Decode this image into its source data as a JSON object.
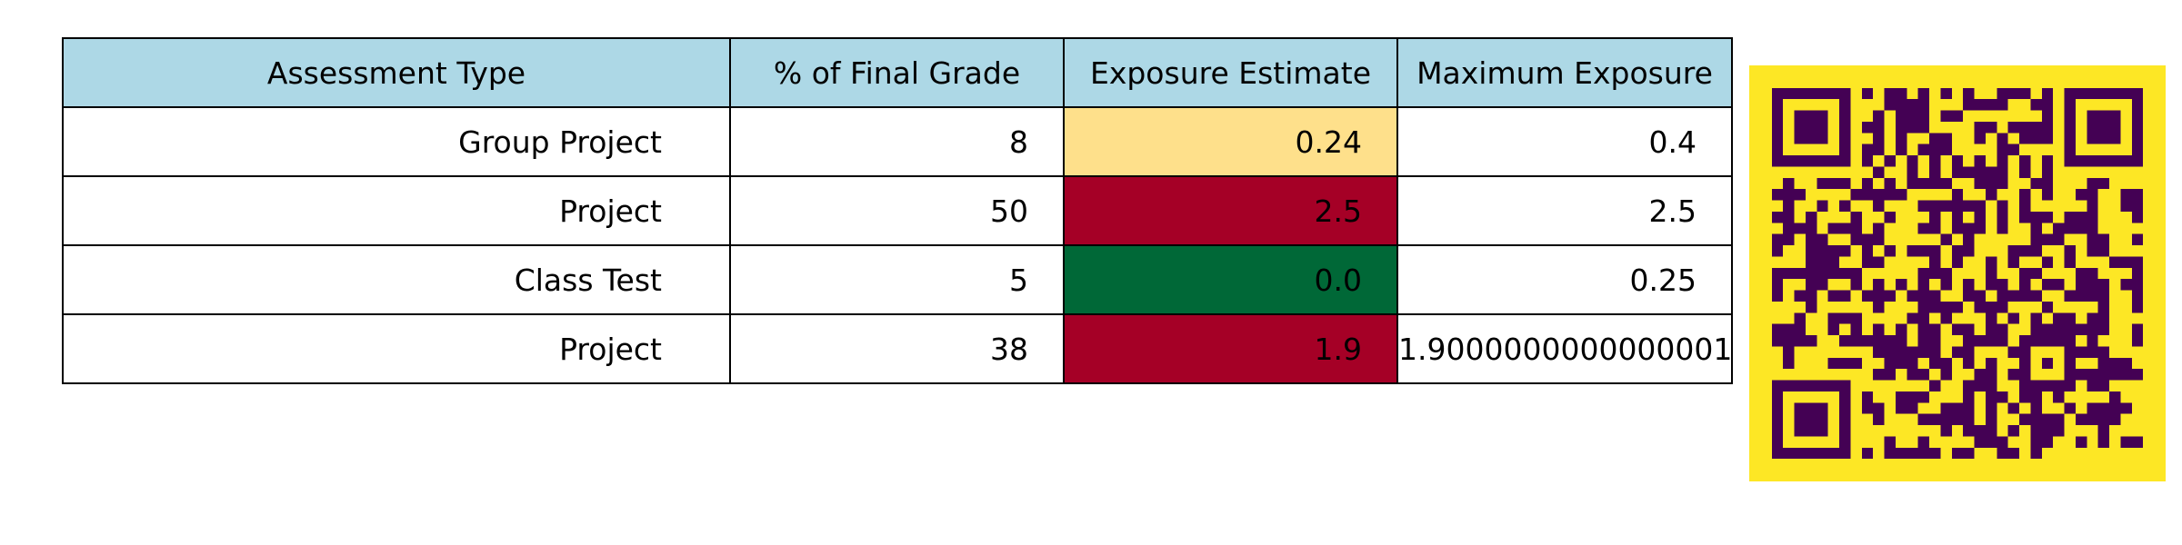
{
  "chart_data": {
    "type": "table",
    "columns": [
      "Assessment Type",
      "% of Final Grade",
      "Exposure Estimate",
      "Maximum Exposure"
    ],
    "rows": [
      {
        "type": "Group Project",
        "pct": "8",
        "estimate": "0.24",
        "max": "0.4"
      },
      {
        "type": "Project",
        "pct": "50",
        "estimate": "2.5",
        "max": "2.5"
      },
      {
        "type": "Class Test",
        "pct": "5",
        "estimate": "0.0",
        "max": "0.25"
      },
      {
        "type": "Project",
        "pct": "38",
        "estimate": "1.9",
        "max": "1.9000000000000001"
      }
    ],
    "estimate_cell_colors": [
      "#fee08b",
      "#a50026",
      "#006837",
      "#a50026"
    ]
  },
  "colors": {
    "header_background": "#add8e6",
    "cell_background": "#ffffff",
    "grid_line": "#000000",
    "qr_background": "#fde725",
    "qr_modules": "#440154"
  }
}
